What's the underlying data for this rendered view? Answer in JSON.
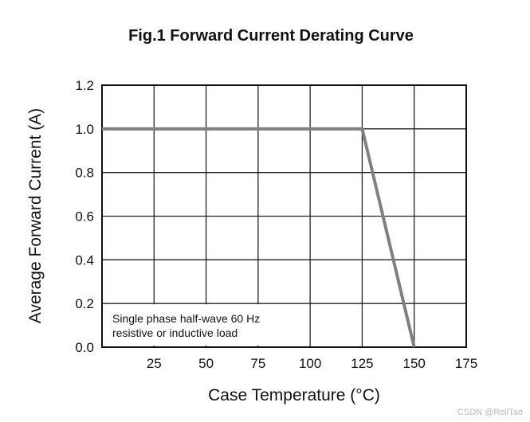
{
  "chart_data": {
    "type": "line",
    "title": "Fig.1  Forward Current Derating Curve",
    "xlabel": "Case Temperature (°C)",
    "ylabel": "Average Forward Current (A)",
    "xlim": [
      0,
      175
    ],
    "ylim": [
      0,
      1.2
    ],
    "x_ticks": [
      25,
      50,
      75,
      100,
      125,
      150,
      175
    ],
    "x_tick_labels": [
      "25",
      "50",
      "75",
      "100",
      "125",
      "150",
      "175"
    ],
    "y_ticks": [
      0.0,
      0.2,
      0.4,
      0.6,
      0.8,
      1.0,
      1.2
    ],
    "y_tick_labels": [
      "0.0",
      "0.2",
      "0.4",
      "0.6",
      "0.8",
      "1.0",
      "1.2"
    ],
    "grid": true,
    "series": [
      {
        "x": [
          0,
          125,
          150
        ],
        "y": [
          1.0,
          1.0,
          0.0
        ],
        "color": "#808080"
      }
    ],
    "annotation": [
      "Single phase half-wave 60 Hz",
      "resistive or inductive load"
    ]
  },
  "watermark": "CSDN @RollTao"
}
